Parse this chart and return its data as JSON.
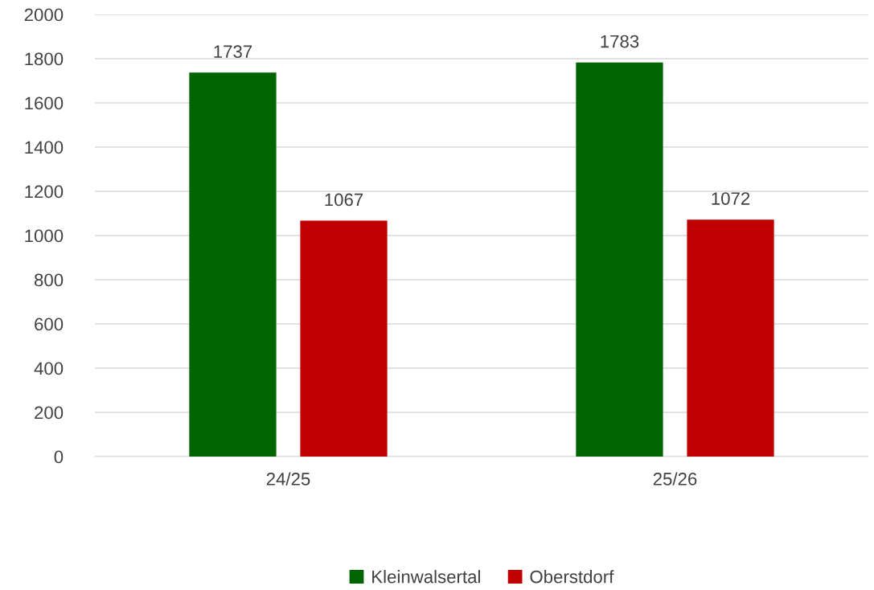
{
  "chart_data": {
    "type": "bar",
    "categories": [
      "24/25",
      "25/26"
    ],
    "series": [
      {
        "name": "Kleinwalsertal",
        "color": "#006400",
        "values": [
          1737,
          1783
        ]
      },
      {
        "name": "Oberstdorf",
        "color": "#c00000",
        "values": [
          1067,
          1072
        ]
      }
    ],
    "ylim": [
      0,
      2000
    ],
    "yticks": [
      0,
      200,
      400,
      600,
      800,
      1000,
      1200,
      1400,
      1600,
      1800,
      2000
    ],
    "grid": "y",
    "legend": "bottom",
    "data_labels": true
  }
}
